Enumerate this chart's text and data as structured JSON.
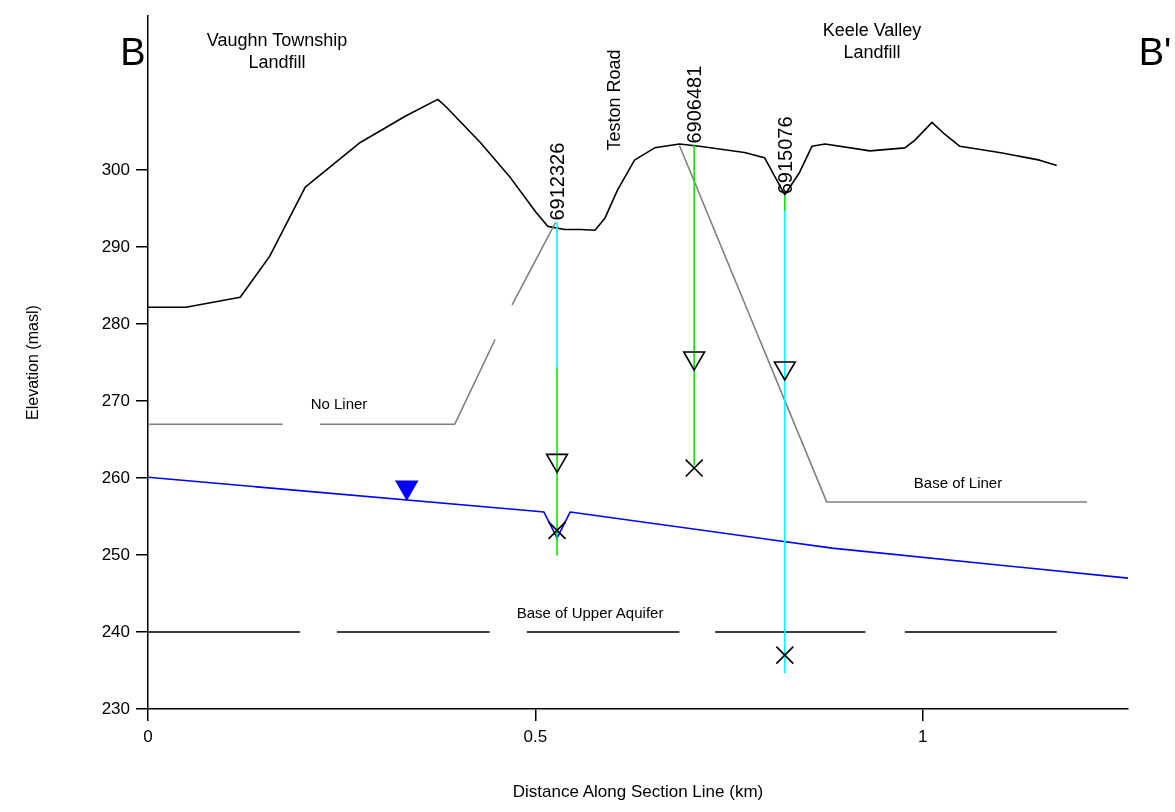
{
  "chart_data": {
    "type": "line",
    "xlabel": "Distance Along Section Line (km)",
    "ylabel": "Elevation (masl)",
    "xlim": [
      0,
      1.265
    ],
    "xticks": [
      0,
      0.5,
      1
    ],
    "ylim": [
      230,
      320
    ],
    "yticks": [
      230,
      240,
      250,
      260,
      270,
      280,
      290,
      300
    ],
    "grid": false,
    "legend": false,
    "marker": "none",
    "line_style": "solid",
    "series": [
      {
        "color": "#000000",
        "x": [
          0,
          0.049,
          0.119,
          0.157,
          0.203,
          0.274,
          0.332,
          0.374,
          0.384,
          0.429,
          0.468,
          0.501,
          0.516,
          0.538,
          0.559,
          0.577,
          0.59,
          0.606,
          0.628,
          0.654,
          0.686,
          0.712,
          0.77,
          0.796,
          0.822,
          0.841,
          0.857,
          0.874,
          0.932,
          0.977,
          0.99,
          1.012,
          1.028,
          1.048,
          1.099,
          1.151,
          1.173
        ],
        "values": [
          282.2,
          282.2,
          283.5,
          288.8,
          297.8,
          303.6,
          307,
          309.2,
          308.3,
          303.6,
          299,
          294.5,
          292.7,
          292.3,
          292.3,
          292.2,
          293.8,
          297.4,
          301.3,
          302.9,
          303.4,
          303.1,
          302.3,
          301.6,
          296.8,
          299.7,
          303.1,
          303.4,
          302.5,
          302.9,
          303.9,
          306.2,
          304.7,
          303.1,
          302.3,
          301.3,
          300.6
        ]
      },
      {
        "color": "#808080",
        "x": [
          0,
          0.174,
          0.2,
          0.222,
          0.396,
          0.448,
          0.459,
          0.47,
          0.526
        ],
        "values": [
          267,
          267,
          null,
          267,
          267,
          278,
          null,
          282.5,
          293.2
        ]
      },
      {
        "color": "#808080",
        "x": [
          0.686,
          0.876,
          1.212
        ],
        "values": [
          303.2,
          256.9,
          256.9
        ]
      },
      {
        "color": "#000000",
        "x": [
          0,
          0.196,
          0.22,
          0.244,
          0.441,
          0.465,
          0.489,
          0.686,
          0.71,
          0.732,
          0.926,
          0.95,
          0.977,
          1.173
        ],
        "values": [
          240,
          240,
          null,
          240,
          240,
          null,
          240,
          240,
          null,
          240,
          240,
          null,
          240,
          240
        ]
      },
      {
        "color": "#0000ff",
        "x": [
          0,
          0.511,
          0.528,
          0.545,
          0.883,
          1.265
        ],
        "values": [
          260.1,
          255.6,
          252.2,
          255.6,
          250.9,
          247
        ]
      },
      {
        "name": "6912326",
        "color": "#00ffff",
        "x": [
          0.528,
          0.528
        ],
        "values": [
          293.2,
          274.3
        ]
      },
      {
        "color": "#00ee00",
        "x": [
          0.528,
          0.528
        ],
        "values": [
          274.3,
          250
        ]
      },
      {
        "name": "6906481",
        "color": "#00ee00",
        "x": [
          0.705,
          0.705
        ],
        "values": [
          303.2,
          261.7
        ]
      },
      {
        "color": "#00ffff",
        "x": [
          0.822,
          0.822
        ],
        "values": [
          294.8,
          234.7
        ]
      },
      {
        "name": "6915076",
        "color": "#00ee00",
        "x": [
          0.822,
          0.822
        ],
        "values": [
          296.6,
          294.8
        ]
      },
      {
        "type": "scatter",
        "marker": "triangle",
        "color": "#000000",
        "x": [
          0.528,
          0.705,
          0.822
        ],
        "values": [
          262.3,
          275.6,
          274.3
        ]
      },
      {
        "type": "scatter",
        "marker": "cross",
        "color": "#000000",
        "x": [
          0.528,
          0.705,
          0.822
        ],
        "values": [
          253.2,
          261.3,
          237
        ]
      },
      {
        "type": "scatter",
        "marker": "triangle",
        "color": "#0000ff",
        "x": [
          0.334
        ],
        "values": [
          258.8
        ]
      }
    ],
    "annotations": [
      "B",
      "B'",
      "Vaughn Township Landfill",
      "Keele Valley Landfill",
      "Teston Road",
      "No Liner",
      "Base of Liner",
      "Base of Upper Aquifer"
    ]
  }
}
